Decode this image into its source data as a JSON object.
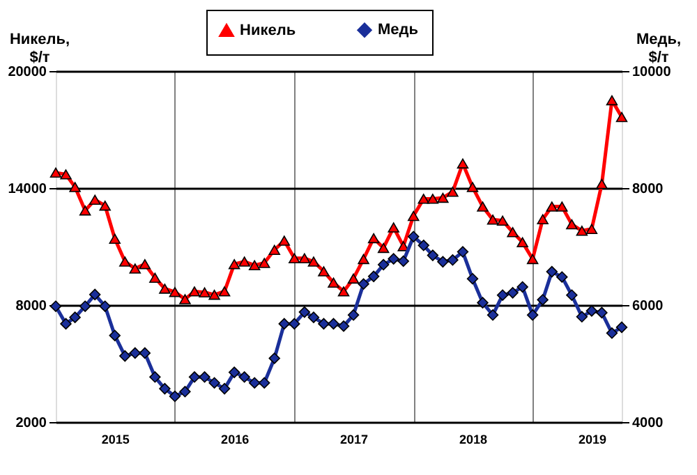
{
  "chart_data": {
    "type": "line",
    "ylabel": "Никель, $/т",
    "y2label": "Медь, $/т",
    "x": [
      "2015-01",
      "2015-02",
      "2015-03",
      "2015-04",
      "2015-05",
      "2015-06",
      "2015-07",
      "2015-08",
      "2015-09",
      "2015-10",
      "2015-11",
      "2015-12",
      "2016-01",
      "2016-02",
      "2016-03",
      "2016-04",
      "2016-05",
      "2016-06",
      "2016-07",
      "2016-08",
      "2016-09",
      "2016-10",
      "2016-11",
      "2016-12",
      "2017-01",
      "2017-02",
      "2017-03",
      "2017-04",
      "2017-05",
      "2017-06",
      "2017-07",
      "2017-08",
      "2017-09",
      "2017-10",
      "2017-11",
      "2017-12",
      "2018-01",
      "2018-02",
      "2018-03",
      "2018-04",
      "2018-05",
      "2018-06",
      "2018-07",
      "2018-08",
      "2018-09",
      "2018-10",
      "2018-11",
      "2018-12",
      "2019-01",
      "2019-02",
      "2019-03",
      "2019-04",
      "2019-05",
      "2019-06",
      "2019-07",
      "2019-08",
      "2019-09",
      "2019-10"
    ],
    "series": [
      {
        "name": "Никель",
        "color": "#ff0000",
        "marker": "triangle",
        "values": [
          14790,
          14700,
          14050,
          12850,
          13400,
          13100,
          11400,
          10230,
          9870,
          10100,
          9400,
          8840,
          8670,
          8300,
          8700,
          8650,
          8530,
          8700,
          10100,
          10230,
          10040,
          10160,
          10830,
          11300,
          10400,
          10400,
          10230,
          9730,
          9150,
          8700,
          9360,
          10360,
          11430,
          10930,
          11980,
          11020,
          12570,
          13450,
          13450,
          13500,
          13810,
          15260,
          14050,
          13050,
          12380,
          12330,
          11740,
          11220,
          10360,
          12400,
          13050,
          13050,
          12140,
          11810,
          11900,
          14210,
          18500,
          17640
        ]
      },
      {
        "name": "Медь",
        "color": "#1a2f9a",
        "marker": "diamond",
        "axis": "y2",
        "values": [
          5980,
          5680,
          5790,
          5980,
          6180,
          5980,
          5480,
          5130,
          5180,
          5180,
          4770,
          4570,
          4440,
          4520,
          4770,
          4770,
          4670,
          4570,
          4850,
          4770,
          4670,
          4670,
          5090,
          5680,
          5680,
          5880,
          5790,
          5680,
          5680,
          5640,
          5830,
          6360,
          6490,
          6690,
          6790,
          6750,
          7170,
          7020,
          6850,
          6740,
          6770,
          6910,
          6450,
          6040,
          5830,
          6170,
          6210,
          6310,
          5830,
          6090,
          6570,
          6480,
          6170,
          5800,
          5900,
          5870,
          5520,
          5620
        ]
      }
    ],
    "xlim": [
      "2015-01",
      "2019-10"
    ],
    "xticks": [
      {
        "value": "2015-07",
        "label": "2015"
      },
      {
        "value": "2016-01",
        "label": null
      },
      {
        "value": "2016-07",
        "label": "2016"
      },
      {
        "value": "2017-01",
        "label": null
      },
      {
        "value": "2017-07",
        "label": "2017"
      },
      {
        "value": "2018-01",
        "label": null
      },
      {
        "value": "2018-07",
        "label": "2018"
      },
      {
        "value": "2019-01",
        "label": null
      },
      {
        "value": "2019-07",
        "label": "2019"
      }
    ],
    "ylim": [
      2000,
      20000
    ],
    "yticks": [
      2000,
      8000,
      14000,
      20000
    ],
    "y2lim": [
      4000,
      10000
    ],
    "y2ticks": [
      4000,
      6000,
      8000,
      10000
    ],
    "grid": true,
    "legend": "top",
    "line_style": "solid"
  }
}
